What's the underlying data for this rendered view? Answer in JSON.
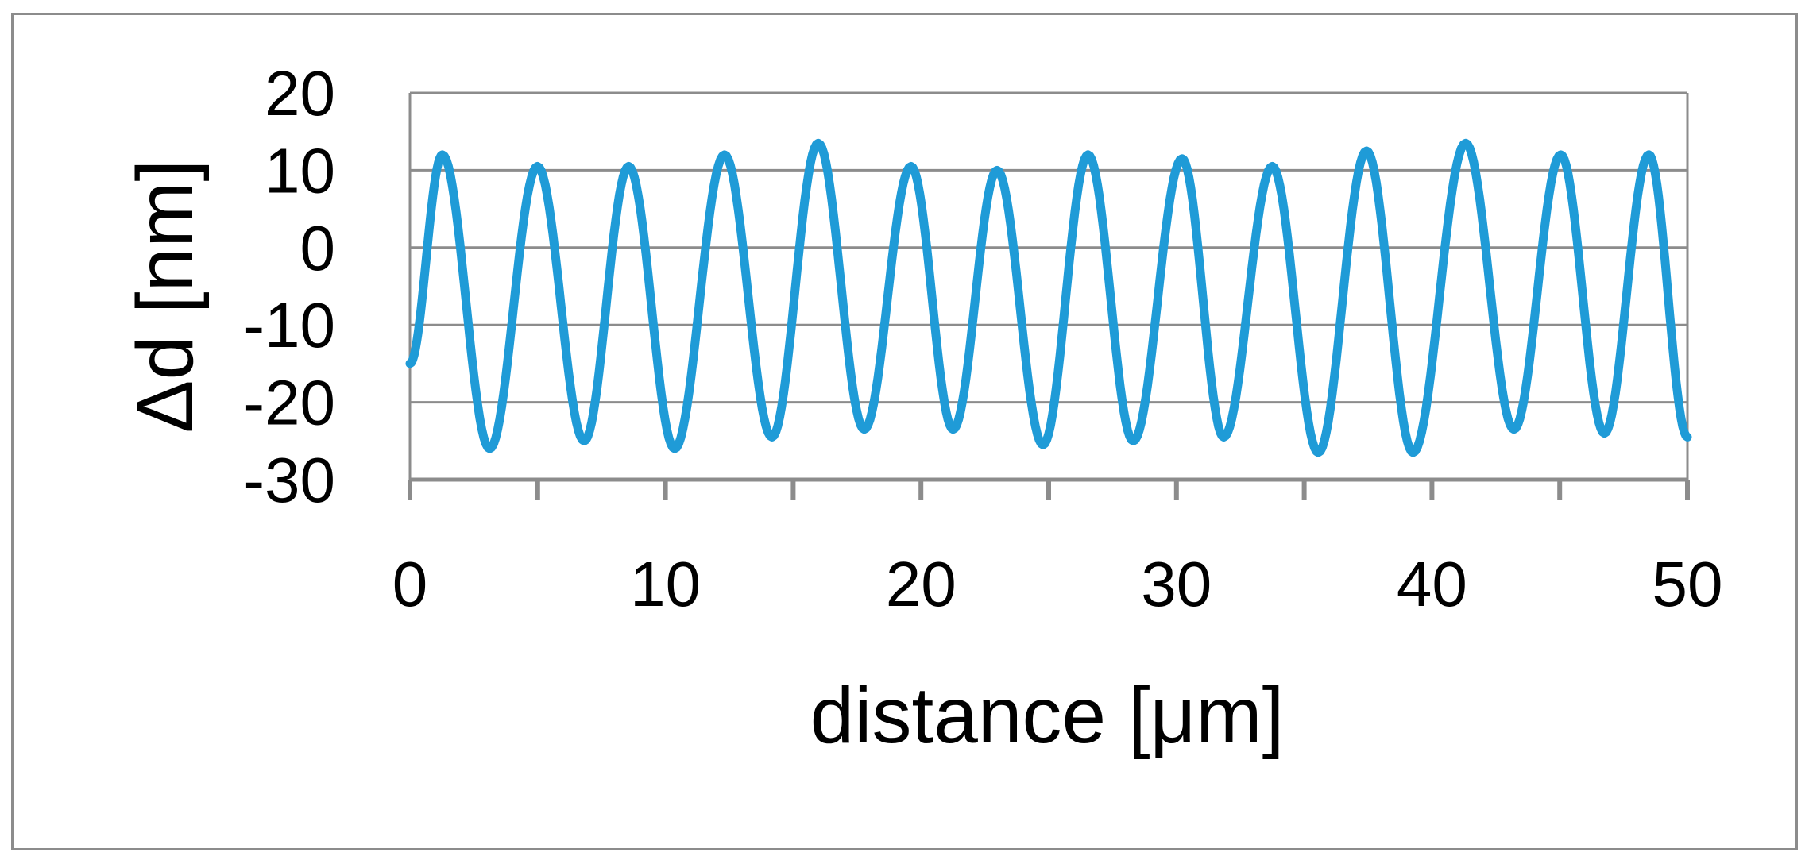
{
  "chart_data": {
    "type": "line",
    "title": "",
    "xlabel": "distance [μm]",
    "ylabel": "Δd [nm]",
    "xlim": [
      0,
      50
    ],
    "ylim": [
      -30,
      20
    ],
    "x_ticks": [
      "0",
      "10",
      "20",
      "30",
      "40",
      "50"
    ],
    "y_ticks": [
      "20",
      "10",
      "0",
      "-10",
      "-20",
      "-30"
    ],
    "grid": "horizontal",
    "legend": "none",
    "series": [
      {
        "color": "#1f9bd7",
        "x": [
          0.0,
          1.27,
          3.12,
          4.99,
          6.82,
          8.56,
          10.36,
          12.31,
          14.17,
          15.98,
          17.78,
          19.61,
          21.26,
          22.98,
          24.78,
          26.54,
          28.31,
          30.22,
          31.85,
          33.75,
          35.55,
          37.44,
          39.26,
          41.32,
          43.21,
          45.04,
          46.75,
          48.49,
          50.0
        ],
        "y": [
          -15,
          12,
          -26,
          10.5,
          -25,
          10.5,
          -26,
          12,
          -24.5,
          13.5,
          -23.5,
          10.5,
          -23.5,
          10,
          -25.5,
          12,
          -25,
          11.5,
          -24.5,
          10.5,
          -26.5,
          12.5,
          -26.5,
          13.5,
          -23.5,
          12,
          -24,
          12,
          -24.5
        ]
      }
    ]
  }
}
